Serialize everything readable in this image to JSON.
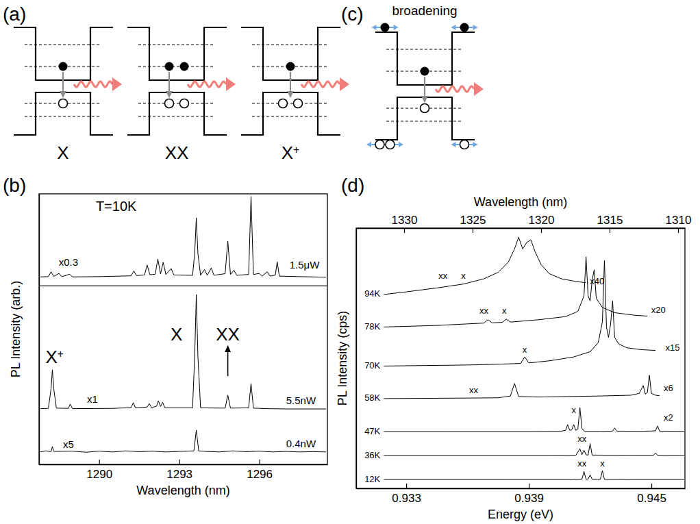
{
  "chart_data": [
    {
      "type": "line",
      "panel_label": "(b)",
      "x_label": "Wavelength (nm)",
      "y_label": "PL Intensity (arb.)",
      "xlim": [
        1287.75,
        1298.55
      ],
      "xticks": [
        1290,
        1293,
        1296
      ],
      "ylim": [
        0,
        100
      ],
      "tick_labels": "x",
      "series": [
        {
          "color": "#000000",
          "x": [
            1287.8,
            1288.1,
            1288.2,
            1288.3,
            1288.5,
            1288.6,
            1288.9,
            1289.0,
            1290.0,
            1291.2,
            1291.3,
            1291.4,
            1291.7,
            1291.8,
            1291.9,
            1292.1,
            1292.2,
            1292.3,
            1292.4,
            1292.5,
            1292.7,
            1292.8,
            1293.5,
            1293.58,
            1293.64,
            1293.7,
            1293.8,
            1293.95,
            1294.05,
            1294.2,
            1294.3,
            1294.72,
            1294.82,
            1294.92,
            1295.05,
            1295.15,
            1295.6,
            1295.69,
            1295.78,
            1296.0,
            1296.1,
            1296.3,
            1296.4,
            1296.6,
            1296.67,
            1296.75,
            1297.5,
            1298.5
          ],
          "values": [
            69.3,
            69.4,
            71.2,
            69.5,
            70.6,
            69.4,
            70.3,
            69.3,
            69.4,
            69.7,
            71.5,
            69.8,
            70.0,
            73.7,
            70.1,
            70.3,
            75.9,
            70.4,
            74.7,
            70.2,
            72.4,
            70.0,
            69.9,
            78.0,
            91.1,
            78.0,
            69.9,
            72.0,
            69.9,
            72.6,
            69.9,
            70.5,
            82.5,
            70.2,
            71.8,
            69.9,
            70.2,
            99.0,
            70.2,
            70.6,
            69.6,
            71.2,
            69.6,
            70.0,
            74.9,
            69.6,
            69.4,
            69.2
          ]
        },
        {
          "color": "#000000",
          "x": [
            1287.8,
            1288.1,
            1288.2,
            1288.25,
            1288.3,
            1288.4,
            1288.85,
            1288.92,
            1289.0,
            1290.5,
            1291.2,
            1291.28,
            1291.36,
            1291.8,
            1291.88,
            1291.96,
            1292.15,
            1292.22,
            1292.3,
            1292.38,
            1292.46,
            1293.5,
            1293.58,
            1293.64,
            1293.7,
            1293.8,
            1294.72,
            1294.82,
            1294.92,
            1295.6,
            1295.69,
            1295.78,
            1296.3,
            1297.0,
            1298.5
          ],
          "values": [
            20.6,
            20.7,
            28.0,
            35.0,
            28.0,
            20.8,
            20.7,
            22.3,
            20.6,
            20.7,
            21.0,
            22.8,
            20.9,
            21.2,
            22.5,
            21.0,
            21.5,
            23.5,
            21.4,
            23.0,
            20.9,
            20.9,
            40.0,
            62.8,
            40.0,
            20.9,
            20.8,
            25.6,
            20.8,
            20.9,
            29.9,
            20.8,
            20.6,
            20.5,
            20.5
          ]
        },
        {
          "color": "#000000",
          "x": [
            1287.8,
            1288.0,
            1288.2,
            1288.25,
            1288.3,
            1289.0,
            1289.5,
            1290.0,
            1290.5,
            1291.0,
            1291.5,
            1292.0,
            1292.5,
            1293.0,
            1293.55,
            1293.64,
            1293.73,
            1294.0,
            1294.5,
            1295.0,
            1295.5,
            1296.0,
            1296.5,
            1297.0,
            1297.5,
            1298.0,
            1298.5
          ],
          "values": [
            4.6,
            5.0,
            4.7,
            6.6,
            4.8,
            4.9,
            4.5,
            4.9,
            4.6,
            5.0,
            4.7,
            4.9,
            4.6,
            4.8,
            5.0,
            12.7,
            5.0,
            4.8,
            4.6,
            5.0,
            4.7,
            4.9,
            4.6,
            4.8,
            4.6,
            4.7,
            4.6
          ]
        }
      ],
      "annotations": [
        {
          "text": "T=10K",
          "x": 1290.64,
          "y": 93.7
        },
        {
          "text": "x0.3",
          "x": 1288.85,
          "y": 73.5
        },
        {
          "text": "1.5μW",
          "x": 1297.69,
          "y": 72.4
        },
        {
          "text": "X+",
          "x": 1288.33,
          "y": 37.5
        },
        {
          "text": "X",
          "x": 1292.9,
          "y": 45.8
        },
        {
          "text": "XX",
          "x": 1294.82,
          "y": 45.8,
          "marker": "arrow"
        },
        {
          "text": "x1",
          "x": 1289.75,
          "y": 22.8
        },
        {
          "text": "5.5nW",
          "x": 1297.56,
          "y": 22.3
        },
        {
          "text": "x5",
          "x": 1288.85,
          "y": 6.1
        },
        {
          "text": "0.4nW",
          "x": 1297.56,
          "y": 6.3
        }
      ]
    },
    {
      "type": "line",
      "panel_label": "(d)",
      "x_label": "Energy (eV)",
      "x2_label": "Wavelength (nm)",
      "y_label": "PL Intensity (cps)",
      "xlim": [
        0.93055,
        0.94664
      ],
      "xticks": [
        0.933,
        0.939,
        0.945
      ],
      "x2lim": [
        1333.5,
        1309.5
      ],
      "x2ticks": [
        1330,
        1325,
        1320,
        1315,
        1310
      ],
      "ylim": [
        0,
        100
      ],
      "tick_labels": "x",
      "series": [
        {
          "name": "94K",
          "color": "#000000",
          "x": [
            0.9319,
            0.933,
            0.9345,
            0.9358,
            0.9368,
            0.9375,
            0.938,
            0.9383,
            0.9385,
            0.9387,
            0.9389,
            0.9391,
            0.9393,
            0.9396,
            0.94,
            0.9406,
            0.9413,
            0.9418
          ],
          "values": [
            74.5,
            75.5,
            77.0,
            78.5,
            80.5,
            83.0,
            87.0,
            92.0,
            96.5,
            92.0,
            94.5,
            95.5,
            91.0,
            86.0,
            82.5,
            80.5,
            79.5,
            79.0
          ]
        },
        {
          "name": "78K",
          "color": "#000000",
          "x": [
            0.9319,
            0.9345,
            0.936,
            0.9368,
            0.937,
            0.9372,
            0.9377,
            0.9379,
            0.9381,
            0.9395,
            0.9408,
            0.9414,
            0.9417,
            0.9418,
            0.9419,
            0.942,
            0.9421,
            0.9422,
            0.9423,
            0.9426,
            0.9432,
            0.9442,
            0.9448
          ],
          "values": [
            62.0,
            62.6,
            63.2,
            63.5,
            64.8,
            63.6,
            63.8,
            65.0,
            63.9,
            64.8,
            66.0,
            68.0,
            74.0,
            89.0,
            74.0,
            72.0,
            80.0,
            84.0,
            73.0,
            69.5,
            67.5,
            66.5,
            66.2
          ]
        },
        {
          "name": "70K",
          "color": "#000000",
          "x": [
            0.9319,
            0.934,
            0.936,
            0.9375,
            0.9386,
            0.9388,
            0.939,
            0.94,
            0.9412,
            0.942,
            0.9424,
            0.9426,
            0.9427,
            0.9428,
            0.9429,
            0.943,
            0.9431,
            0.9432,
            0.9434,
            0.9438,
            0.9445,
            0.9452
          ],
          "values": [
            47.0,
            47.2,
            47.4,
            47.7,
            48.0,
            50.5,
            48.2,
            49.0,
            50.5,
            52.5,
            56.0,
            64.0,
            87.5,
            62.0,
            58.0,
            63.0,
            72.0,
            58.0,
            55.5,
            54.0,
            53.3,
            53.0
          ]
        },
        {
          "name": "58K",
          "color": "#000000",
          "x": [
            0.9319,
            0.934,
            0.936,
            0.9375,
            0.9381,
            0.9383,
            0.9385,
            0.9395,
            0.941,
            0.9425,
            0.944,
            0.9444,
            0.9446,
            0.9447,
            0.9448,
            0.9449,
            0.945,
            0.9452,
            0.9454
          ],
          "values": [
            34.5,
            34.6,
            34.7,
            34.8,
            35.5,
            40.3,
            35.3,
            35.1,
            35.3,
            35.5,
            35.8,
            36.5,
            39.5,
            36.2,
            36.8,
            43.5,
            36.5,
            35.8,
            35.6
          ]
        },
        {
          "name": "47K",
          "color": "#000000",
          "x": [
            0.9319,
            0.935,
            0.939,
            0.9405,
            0.9408,
            0.9409,
            0.941,
            0.9411,
            0.9412,
            0.9413,
            0.9414,
            0.9415,
            0.9416,
            0.9417,
            0.9418,
            0.9425,
            0.9431,
            0.9432,
            0.9433,
            0.9445,
            0.9452,
            0.9453,
            0.9454,
            0.9466
          ],
          "values": [
            21.8,
            21.8,
            21.8,
            21.9,
            22.3,
            24.5,
            22.3,
            22.5,
            24.5,
            22.3,
            22.8,
            31.0,
            23.0,
            22.1,
            21.9,
            21.9,
            22.0,
            23.2,
            22.0,
            21.9,
            22.1,
            24.0,
            22.0,
            21.9
          ]
        },
        {
          "name": "36K",
          "color": "#000000",
          "x": [
            0.9319,
            0.936,
            0.94,
            0.9413,
            0.9415,
            0.9416,
            0.9417,
            0.9418,
            0.9419,
            0.942,
            0.9421,
            0.944,
            0.9451,
            0.9452,
            0.9453,
            0.9466
          ],
          "values": [
            12.6,
            12.6,
            12.6,
            12.7,
            15.2,
            12.9,
            14.7,
            12.9,
            12.8,
            17.2,
            12.8,
            12.7,
            12.7,
            13.6,
            12.7,
            12.6
          ]
        },
        {
          "name": "12K",
          "color": "#000000",
          "x": [
            0.9319,
            0.938,
            0.941,
            0.9416,
            0.9417,
            0.9418,
            0.9419,
            0.942,
            0.9421,
            0.9425,
            0.9426,
            0.9427,
            0.944,
            0.9466
          ],
          "values": [
            3.4,
            3.4,
            3.4,
            3.5,
            6.5,
            3.5,
            3.6,
            5.2,
            3.5,
            3.5,
            6.8,
            3.5,
            3.4,
            3.4
          ]
        }
      ],
      "annotations": [
        {
          "text": "xx",
          "x": 0.9348,
          "y": 80.5
        },
        {
          "text": "x",
          "x": 0.9358,
          "y": 80.5
        },
        {
          "text": "x40",
          "x": 0.94234,
          "y": 78.5
        },
        {
          "text": "xx",
          "x": 0.9368,
          "y": 67.0
        },
        {
          "text": "x",
          "x": 0.9378,
          "y": 67.0
        },
        {
          "text": "x20",
          "x": 0.94534,
          "y": 67.5
        },
        {
          "text": "x",
          "x": 0.9388,
          "y": 52.0
        },
        {
          "text": "x15",
          "x": 0.94604,
          "y": 53.0
        },
        {
          "text": "xx",
          "x": 0.9363,
          "y": 36.5
        },
        {
          "text": "x6",
          "x": 0.94583,
          "y": 37.5
        },
        {
          "text": "x",
          "x": 0.9412,
          "y": 29.0
        },
        {
          "text": "x2",
          "x": 0.94583,
          "y": 26.0
        },
        {
          "text": "xx",
          "x": 0.9416,
          "y": 17.8
        },
        {
          "text": "xx",
          "x": 0.9416,
          "y": 8.5
        },
        {
          "text": "x",
          "x": 0.9426,
          "y": 8.5
        }
      ]
    }
  ],
  "diagrams": [
    {
      "panel_label": "(a)",
      "wells": [
        {
          "caption": "X",
          "electrons": 1,
          "holes": 1
        },
        {
          "caption": "XX",
          "electrons": 2,
          "holes": 2
        },
        {
          "caption": "X+",
          "electrons": 1,
          "holes": 2
        }
      ]
    },
    {
      "panel_label": "(c)",
      "title": "broadening",
      "wells": [
        {
          "electrons": 1,
          "holes": 1,
          "barrier_electrons": [
            1,
            1
          ],
          "barrier_holes": [
            2,
            1
          ]
        }
      ]
    }
  ]
}
